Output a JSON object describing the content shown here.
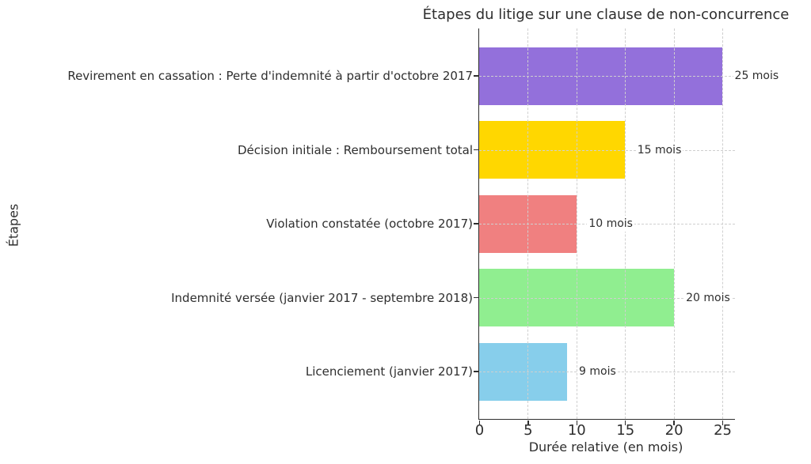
{
  "chart_data": {
    "type": "bar",
    "orientation": "horizontal",
    "title": "Étapes du litige sur une clause de non-concurrence",
    "xlabel": "Durée relative (en mois)",
    "ylabel": "Étapes",
    "categories": [
      "Revirement en cassation : Perte d'indemnité à partir d'octobre 2017",
      "Décision initiale : Remboursement total",
      "Violation constatée (octobre 2017)",
      "Indemnité versée (janvier 2017 - septembre 2018)",
      "Licenciement (janvier 2017)"
    ],
    "values": [
      25,
      15,
      10,
      20,
      9
    ],
    "value_labels": [
      "25 mois",
      "15 mois",
      "10 mois",
      "20 mois",
      "9 mois"
    ],
    "bar_colors": [
      "#9370DB",
      "#FFD700",
      "#F08080",
      "#90EE90",
      "#87CEEB"
    ],
    "xticks": [
      0,
      5,
      10,
      15,
      20,
      25
    ],
    "xlim": [
      0,
      26.3
    ],
    "grid": {
      "style": "dashed",
      "color": "#cfcfcf",
      "axes": "both"
    },
    "legend": "none",
    "background_color": "#ffffff",
    "text_color": "#2e2e2e",
    "spine_color": "#2e2e2e"
  }
}
